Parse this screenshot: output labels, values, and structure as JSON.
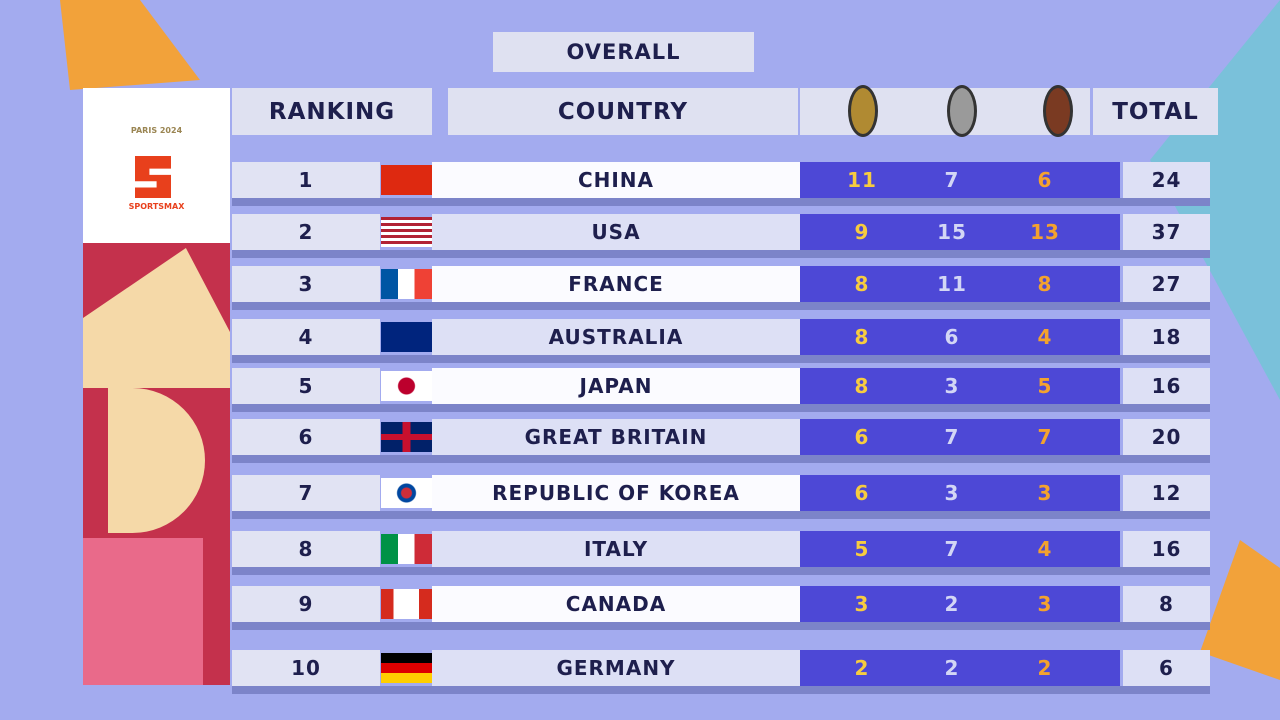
{
  "header": {
    "title": "OVERALL",
    "logos": [
      "PARIS 2024",
      "SPORTSMAX"
    ]
  },
  "table": {
    "columns": [
      "RANKING",
      "COUNTRY",
      "TOTAL"
    ],
    "rows": [
      [
        1,
        "CHINA",
        11,
        7,
        6,
        24
      ],
      [
        2,
        "USA",
        9,
        15,
        13,
        37
      ],
      [
        3,
        "FRANCE",
        8,
        11,
        8,
        27
      ],
      [
        4,
        "AUSTRALIA",
        8,
        6,
        4,
        18
      ],
      [
        5,
        "JAPAN",
        8,
        3,
        5,
        16
      ],
      [
        6,
        "GREAT BRITAIN",
        6,
        7,
        7,
        20
      ],
      [
        7,
        "REPUBLIC OF KOREA",
        6,
        3,
        3,
        12
      ],
      [
        8,
        "ITALY",
        5,
        7,
        4,
        16
      ],
      [
        9,
        "CANADA",
        3,
        2,
        3,
        8
      ],
      [
        10,
        "GERMANY",
        2,
        2,
        2,
        6
      ]
    ]
  }
}
